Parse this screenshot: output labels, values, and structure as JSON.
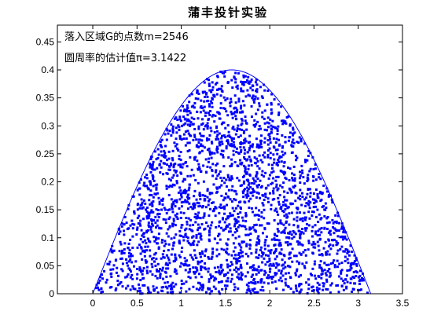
{
  "chart_data": {
    "type": "scatter",
    "title": "蒲丰投针实验",
    "xlabel": "",
    "ylabel": "",
    "xlim": [
      -0.4,
      3.5
    ],
    "ylim": [
      0,
      0.48
    ],
    "x_ticks": [
      0,
      0.5,
      1,
      1.5,
      2,
      2.5,
      3,
      3.5
    ],
    "x_tick_labels": [
      "0",
      "0.5",
      "1",
      "1.5",
      "2",
      "2.5",
      "3",
      "3.5"
    ],
    "y_ticks": [
      0,
      0.05,
      0.1,
      0.15,
      0.2,
      0.25,
      0.3,
      0.35,
      0.4,
      0.45
    ],
    "y_tick_labels": [
      "0",
      "0.05",
      "0.1",
      "0.15",
      "0.2",
      "0.25",
      "0.3",
      "0.35",
      "0.4",
      "0.45"
    ],
    "grid": false,
    "annotations": [
      "落入区域G的点数m=2546",
      "圆周率的估计值π=3.1422"
    ],
    "boundary_curve": {
      "function": "0.4*sin(x)",
      "x_range": [
        0,
        3.14159
      ]
    },
    "point_count": 2546,
    "point_region": "0 ≤ y ≤ 0.4·sin(x), 0 ≤ x ≤ π",
    "colors": {
      "points": "#0000ff",
      "curve": "#0000ff",
      "axes": "#000000"
    }
  }
}
